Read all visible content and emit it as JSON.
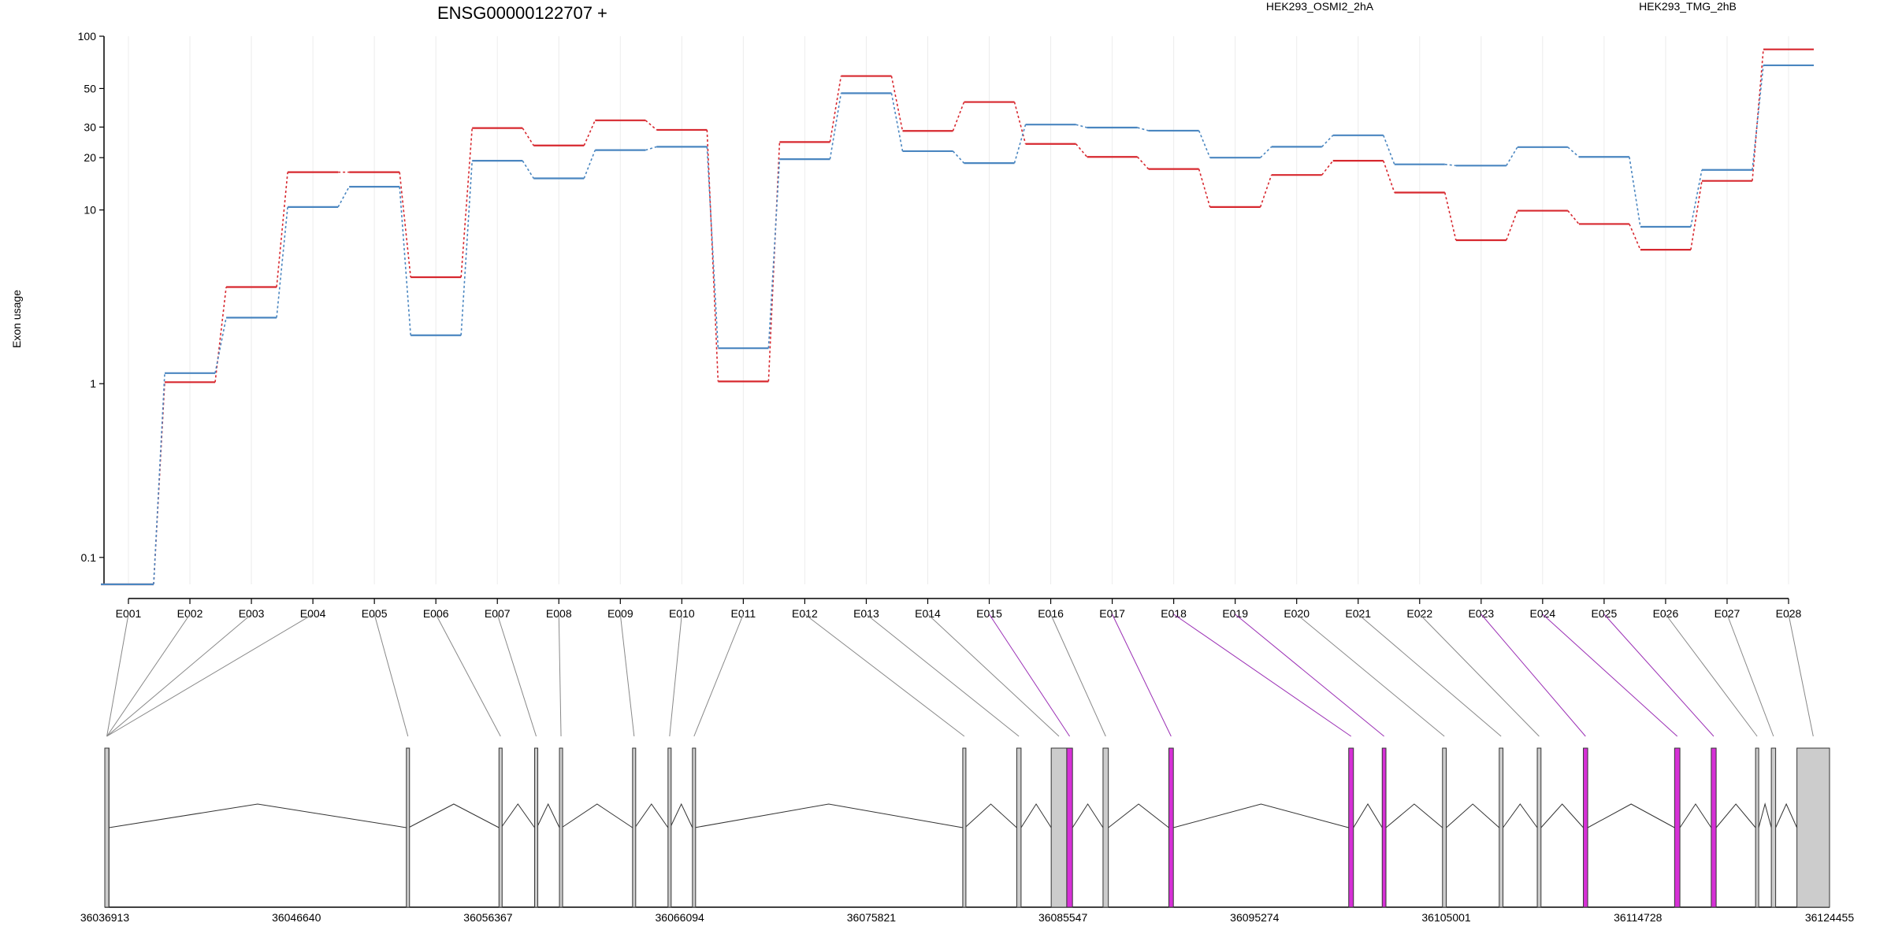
{
  "chart_data": {
    "type": "line",
    "title": "ENSG00000122707 +",
    "ylabel": "Exon usage",
    "yscale": "log",
    "ylim": [
      0.07,
      100
    ],
    "yticks": [
      {
        "value": 0.1,
        "label": "0.1"
      },
      {
        "value": 1,
        "label": "1"
      },
      {
        "value": 10,
        "label": "10"
      },
      {
        "value": 20,
        "label": "20"
      },
      {
        "value": 30,
        "label": "30"
      },
      {
        "value": 50,
        "label": "50"
      },
      {
        "value": 100,
        "label": "100"
      }
    ],
    "grid": "vertical",
    "legend_placement": "top",
    "categories": [
      "E001",
      "E002",
      "E003",
      "E004",
      "E005",
      "E006",
      "E007",
      "E008",
      "E009",
      "E010",
      "E011",
      "E012",
      "E013",
      "E014",
      "E015",
      "E016",
      "E017",
      "E018",
      "E019",
      "E020",
      "E021",
      "E022",
      "E023",
      "E024",
      "E025",
      "E026",
      "E027",
      "E028"
    ],
    "series": [
      {
        "name": "HEK293_OSMI2_2hA",
        "color": "#d7282f",
        "values": [
          0.07,
          1.02,
          3.6,
          16.5,
          16.5,
          4.1,
          29.6,
          23.5,
          32.8,
          28.9,
          1.03,
          24.6,
          59.0,
          28.5,
          41.8,
          24.0,
          20.2,
          17.2,
          10.4,
          15.9,
          19.2,
          12.6,
          6.7,
          9.9,
          8.3,
          5.9,
          14.7,
          84.0
        ]
      },
      {
        "name": "HEK293_TMG_2hB",
        "color": "#4a86c0",
        "values": [
          0.07,
          1.15,
          2.4,
          10.4,
          13.6,
          1.9,
          19.2,
          15.2,
          22.1,
          23.1,
          1.6,
          19.6,
          47.0,
          21.8,
          18.6,
          31.0,
          29.8,
          28.6,
          20.0,
          23.1,
          26.9,
          18.3,
          18.0,
          23.0,
          20.2,
          8.0,
          17.0,
          68.0
        ]
      }
    ],
    "gene_model": {
      "coord_ticks": [
        "36036913",
        "36046640",
        "36056367",
        "36066094",
        "36075821",
        "36085547",
        "36095274",
        "36105001",
        "36114728",
        "36124455"
      ],
      "coord_start": 36036913,
      "coord_end": 36124455,
      "exon_fill": "#cccccc",
      "highlight_fill": "#d630d6",
      "connector_color": "#888888",
      "highlight_connector_color": "#9b2fb5",
      "exons": [
        {
          "id": "E001",
          "start": 36036913,
          "end": 36037120,
          "highlight": false
        },
        {
          "id": "E002",
          "start": 36036913,
          "end": 36037120,
          "highlight": false
        },
        {
          "id": "E003",
          "start": 36036913,
          "end": 36037120,
          "highlight": false
        },
        {
          "id": "E004",
          "start": 36036913,
          "end": 36037120,
          "highlight": false
        },
        {
          "id": "E005",
          "start": 36052220,
          "end": 36052330,
          "highlight": false
        },
        {
          "id": "E006",
          "start": 36056920,
          "end": 36057030,
          "highlight": false
        },
        {
          "id": "E007",
          "start": 36058730,
          "end": 36058840,
          "highlight": false
        },
        {
          "id": "E008",
          "start": 36059990,
          "end": 36060100,
          "highlight": false
        },
        {
          "id": "E009",
          "start": 36063700,
          "end": 36063820,
          "highlight": false
        },
        {
          "id": "E010",
          "start": 36065500,
          "end": 36065610,
          "highlight": false
        },
        {
          "id": "E011",
          "start": 36066740,
          "end": 36066850,
          "highlight": false
        },
        {
          "id": "E012",
          "start": 36080460,
          "end": 36080570,
          "highlight": false
        },
        {
          "id": "E013",
          "start": 36083200,
          "end": 36083420,
          "highlight": false
        },
        {
          "id": "E014",
          "start": 36084950,
          "end": 36085740,
          "highlight": false
        },
        {
          "id": "E015",
          "start": 36085740,
          "end": 36086030,
          "highlight": true
        },
        {
          "id": "E016",
          "start": 36087580,
          "end": 36087850,
          "highlight": false
        },
        {
          "id": "E017",
          "start": 36090920,
          "end": 36091150,
          "highlight": true
        },
        {
          "id": "E018",
          "start": 36100050,
          "end": 36100290,
          "highlight": true
        },
        {
          "id": "E019",
          "start": 36101750,
          "end": 36101940,
          "highlight": true
        },
        {
          "id": "E020",
          "start": 36104810,
          "end": 36105000,
          "highlight": false
        },
        {
          "id": "E021",
          "start": 36107690,
          "end": 36107880,
          "highlight": false
        },
        {
          "id": "E022",
          "start": 36109620,
          "end": 36109810,
          "highlight": false
        },
        {
          "id": "E023",
          "start": 36111960,
          "end": 36112180,
          "highlight": true
        },
        {
          "id": "E024",
          "start": 36116590,
          "end": 36116860,
          "highlight": true
        },
        {
          "id": "E025",
          "start": 36118450,
          "end": 36118700,
          "highlight": true
        },
        {
          "id": "E026",
          "start": 36120700,
          "end": 36120860,
          "highlight": false
        },
        {
          "id": "E027",
          "start": 36121500,
          "end": 36121720,
          "highlight": false
        },
        {
          "id": "E028",
          "start": 36122800,
          "end": 36124455,
          "highlight": false
        }
      ]
    }
  }
}
